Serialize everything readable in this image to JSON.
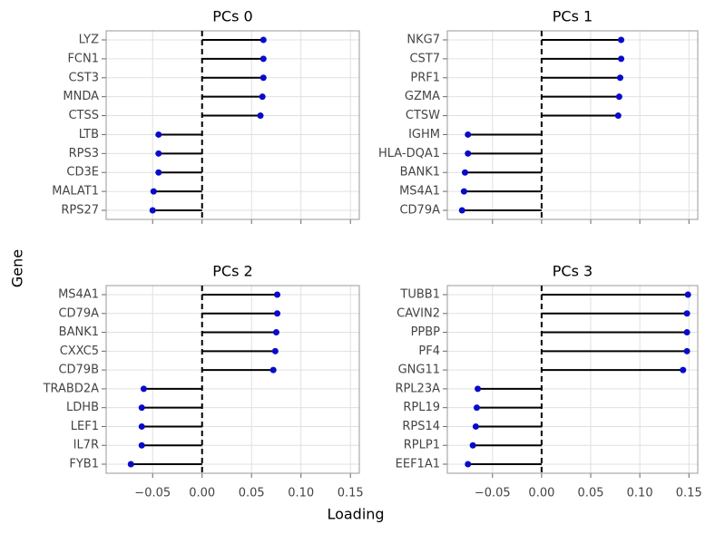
{
  "xlabel": "Loading",
  "ylabel": "Gene",
  "chart_data": [
    {
      "type": "lollipop",
      "title": "PCs 0",
      "color": "#0a0acc",
      "stem_color": "#000000",
      "grid": true,
      "categories": [
        "LYZ",
        "FCN1",
        "CST3",
        "MNDA",
        "CTSS",
        "LTB",
        "RPS3",
        "CD3E",
        "MALAT1",
        "RPS27"
      ],
      "values": [
        0.062,
        0.062,
        0.062,
        0.061,
        0.059,
        -0.044,
        -0.044,
        -0.044,
        -0.049,
        -0.05
      ],
      "xlim": [
        -0.097,
        0.159
      ],
      "xticks": [
        {
          "value": -0.05,
          "label": "−0.05"
        },
        {
          "value": 0,
          "label": "0.00"
        },
        {
          "value": 0.05,
          "label": "0.05"
        },
        {
          "value": 0.1,
          "label": "0.10"
        },
        {
          "value": 0.15,
          "label": "0.15"
        }
      ]
    },
    {
      "type": "lollipop",
      "title": "PCs 1",
      "color": "#0a0acc",
      "stem_color": "#000000",
      "grid": true,
      "categories": [
        "NKG7",
        "CST7",
        "PRF1",
        "GZMA",
        "CTSW",
        "IGHM",
        "HLA-DQA1",
        "BANK1",
        "MS4A1",
        "CD79A"
      ],
      "values": [
        0.081,
        0.081,
        0.08,
        0.079,
        0.078,
        -0.075,
        -0.075,
        -0.078,
        -0.079,
        -0.081
      ],
      "xlim": [
        -0.096,
        0.159
      ],
      "xticks": [
        {
          "value": -0.05,
          "label": "−0.05"
        },
        {
          "value": 0,
          "label": "0.00"
        },
        {
          "value": 0.05,
          "label": "0.05"
        },
        {
          "value": 0.1,
          "label": "0.10"
        },
        {
          "value": 0.15,
          "label": "0.15"
        }
      ]
    },
    {
      "type": "lollipop",
      "title": "PCs 2",
      "color": "#0a0acc",
      "stem_color": "#000000",
      "grid": true,
      "categories": [
        "MS4A1",
        "CD79A",
        "BANK1",
        "CXXC5",
        "CD79B",
        "TRABD2A",
        "LDHB",
        "LEF1",
        "IL7R",
        "FYB1"
      ],
      "values": [
        0.076,
        0.076,
        0.075,
        0.074,
        0.072,
        -0.059,
        -0.061,
        -0.061,
        -0.061,
        -0.072
      ],
      "xlim": [
        -0.097,
        0.159
      ],
      "xticks": [
        {
          "value": -0.05,
          "label": "−0.05"
        },
        {
          "value": 0,
          "label": "0.00"
        },
        {
          "value": 0.05,
          "label": "0.05"
        },
        {
          "value": 0.1,
          "label": "0.10"
        },
        {
          "value": 0.15,
          "label": "0.15"
        }
      ]
    },
    {
      "type": "lollipop",
      "title": "PCs 3",
      "color": "#0a0acc",
      "stem_color": "#000000",
      "grid": true,
      "categories": [
        "TUBB1",
        "CAVIN2",
        "PPBP",
        "PF4",
        "GNG11",
        "RPL23A",
        "RPL19",
        "RPS14",
        "RPLP1",
        "EEF1A1"
      ],
      "values": [
        0.149,
        0.148,
        0.148,
        0.148,
        0.144,
        -0.065,
        -0.066,
        -0.067,
        -0.07,
        -0.075
      ],
      "xlim": [
        -0.096,
        0.159
      ],
      "xticks": [
        {
          "value": -0.05,
          "label": "−0.05"
        },
        {
          "value": 0,
          "label": "0.00"
        },
        {
          "value": 0.05,
          "label": "0.05"
        },
        {
          "value": 0.1,
          "label": "0.10"
        },
        {
          "value": 0.15,
          "label": "0.15"
        }
      ]
    }
  ]
}
